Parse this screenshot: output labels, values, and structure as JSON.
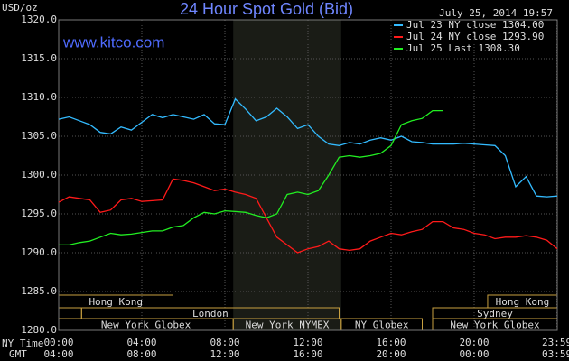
{
  "chart_data": {
    "type": "line",
    "title": "24 Hour Spot Gold (Bid)",
    "watermark": "www.kitco.com",
    "timestamp": "July 25, 2014 19:57",
    "y_label": "USD/oz",
    "x_label": "NY Time",
    "x2_label": "GMT",
    "xlim": [
      0,
      24
    ],
    "ylim": [
      1280,
      1320
    ],
    "grid": true,
    "legend": "top-right",
    "yticks": [
      {
        "value": 1280,
        "label": "1280.0"
      },
      {
        "value": 1285,
        "label": "1285.0"
      },
      {
        "value": 1290,
        "label": "1290.0"
      },
      {
        "value": 1295,
        "label": "1295.0"
      },
      {
        "value": 1300,
        "label": "1300.0"
      },
      {
        "value": 1305,
        "label": "1305.0"
      },
      {
        "value": 1310,
        "label": "1310.0"
      },
      {
        "value": 1315,
        "label": "1315.0"
      },
      {
        "value": 1320,
        "label": "1320.0"
      }
    ],
    "xticks": [
      {
        "value": 0,
        "label": "00:00"
      },
      {
        "value": 4,
        "label": "04:00"
      },
      {
        "value": 8,
        "label": "08:00"
      },
      {
        "value": 12,
        "label": "12:00"
      },
      {
        "value": 16,
        "label": "16:00"
      },
      {
        "value": 20,
        "label": "20:00"
      },
      {
        "value": 23.983,
        "label": "23:59"
      }
    ],
    "x2ticks": [
      {
        "value": 0,
        "label": "04:00"
      },
      {
        "value": 4,
        "label": "08:00"
      },
      {
        "value": 8,
        "label": "12:00"
      },
      {
        "value": 12,
        "label": "16:00"
      },
      {
        "value": 16,
        "label": "20:00"
      },
      {
        "value": 20,
        "label": "00:00"
      },
      {
        "value": 23.983,
        "label": "03:59"
      }
    ],
    "highlight": [
      8.4,
      13.6
    ],
    "sessions": [
      {
        "label": "Hong Kong",
        "start": 0,
        "end": 5.5,
        "row": 0
      },
      {
        "label": "Hong Kong",
        "start": 20.65,
        "end": 24,
        "row": 0
      },
      {
        "label": "London",
        "start": 1.1,
        "end": 13.5,
        "row": 1
      },
      {
        "label": "Sydney",
        "start": 18,
        "end": 24,
        "row": 1
      },
      {
        "label": "New York Globex",
        "start": 0,
        "end": 8.4,
        "row": 2
      },
      {
        "label": "New York NYMEX",
        "start": 8.4,
        "end": 13.6,
        "row": 2
      },
      {
        "label": "NY Globex",
        "start": 13.6,
        "end": 17.5,
        "row": 2
      },
      {
        "label": "New York Globex",
        "start": 18,
        "end": 24,
        "row": 2
      }
    ],
    "x": [
      0,
      0.5,
      1,
      1.5,
      2,
      2.5,
      3,
      3.5,
      4,
      4.5,
      5,
      5.5,
      6,
      6.5,
      7,
      7.5,
      8,
      8.5,
      9,
      9.5,
      10,
      10.5,
      11,
      11.5,
      12,
      12.5,
      13,
      13.5,
      14,
      14.5,
      15,
      15.5,
      16,
      16.5,
      17,
      17.5,
      18,
      18.5,
      19,
      19.5,
      20,
      20.5,
      21,
      21.5,
      22,
      22.5,
      23,
      23.5,
      24
    ],
    "series": [
      {
        "name": "Jul 23 NY close 1304.00",
        "color": "#33bbff",
        "values": [
          1307.2,
          1307.5,
          1307.0,
          1306.5,
          1305.5,
          1305.3,
          1306.2,
          1305.8,
          1306.8,
          1307.8,
          1307.4,
          1307.8,
          1307.5,
          1307.2,
          1307.8,
          1306.6,
          1306.5,
          1309.8,
          1308.5,
          1307.0,
          1307.5,
          1308.6,
          1307.5,
          1306.0,
          1306.5,
          1305.0,
          1304.0,
          1303.8,
          1304.2,
          1304.0,
          1304.5,
          1304.8,
          1304.5,
          1305.0,
          1304.3,
          1304.2,
          1304.0,
          1304.0,
          1304.0,
          1304.1,
          1304.0,
          1303.9,
          1303.8,
          1302.5,
          1298.5,
          1299.8,
          1297.3,
          1297.2,
          1297.3
        ]
      },
      {
        "name": "Jul 24 NY close 1293.90",
        "color": "#ff1a1a",
        "values": [
          1296.5,
          1297.2,
          1297.0,
          1296.8,
          1295.2,
          1295.5,
          1296.8,
          1297.0,
          1296.6,
          1296.7,
          1296.8,
          1299.5,
          1299.3,
          1299.0,
          1298.5,
          1298.0,
          1298.2,
          1297.8,
          1297.5,
          1297.0,
          1294.5,
          1292.0,
          1291.0,
          1290.0,
          1290.5,
          1290.8,
          1291.5,
          1290.5,
          1290.3,
          1290.5,
          1291.5,
          1292.0,
          1292.5,
          1292.3,
          1292.7,
          1293.0,
          1294.0,
          1294.0,
          1293.2,
          1293.0,
          1292.5,
          1292.3,
          1291.8,
          1292.0,
          1292.0,
          1292.2,
          1292.0,
          1291.6,
          1290.5
        ]
      },
      {
        "name": "Jul 25 Last 1308.30",
        "color": "#22ee22",
        "values": [
          1291.0,
          1291.0,
          1291.3,
          1291.5,
          1292.0,
          1292.5,
          1292.3,
          1292.4,
          1292.6,
          1292.8,
          1292.8,
          1293.3,
          1293.5,
          1294.5,
          1295.2,
          1295.0,
          1295.4,
          1295.3,
          1295.2,
          1294.8,
          1294.5,
          1295.0,
          1297.5,
          1297.8,
          1297.5,
          1298.0,
          1300.0,
          1302.3,
          1302.5,
          1302.3,
          1302.5,
          1302.8,
          1303.8,
          1306.5,
          1307.0,
          1307.3,
          1308.3,
          1308.3,
          null,
          null,
          null,
          null,
          null,
          null,
          null,
          null,
          null,
          null,
          null
        ]
      }
    ]
  }
}
